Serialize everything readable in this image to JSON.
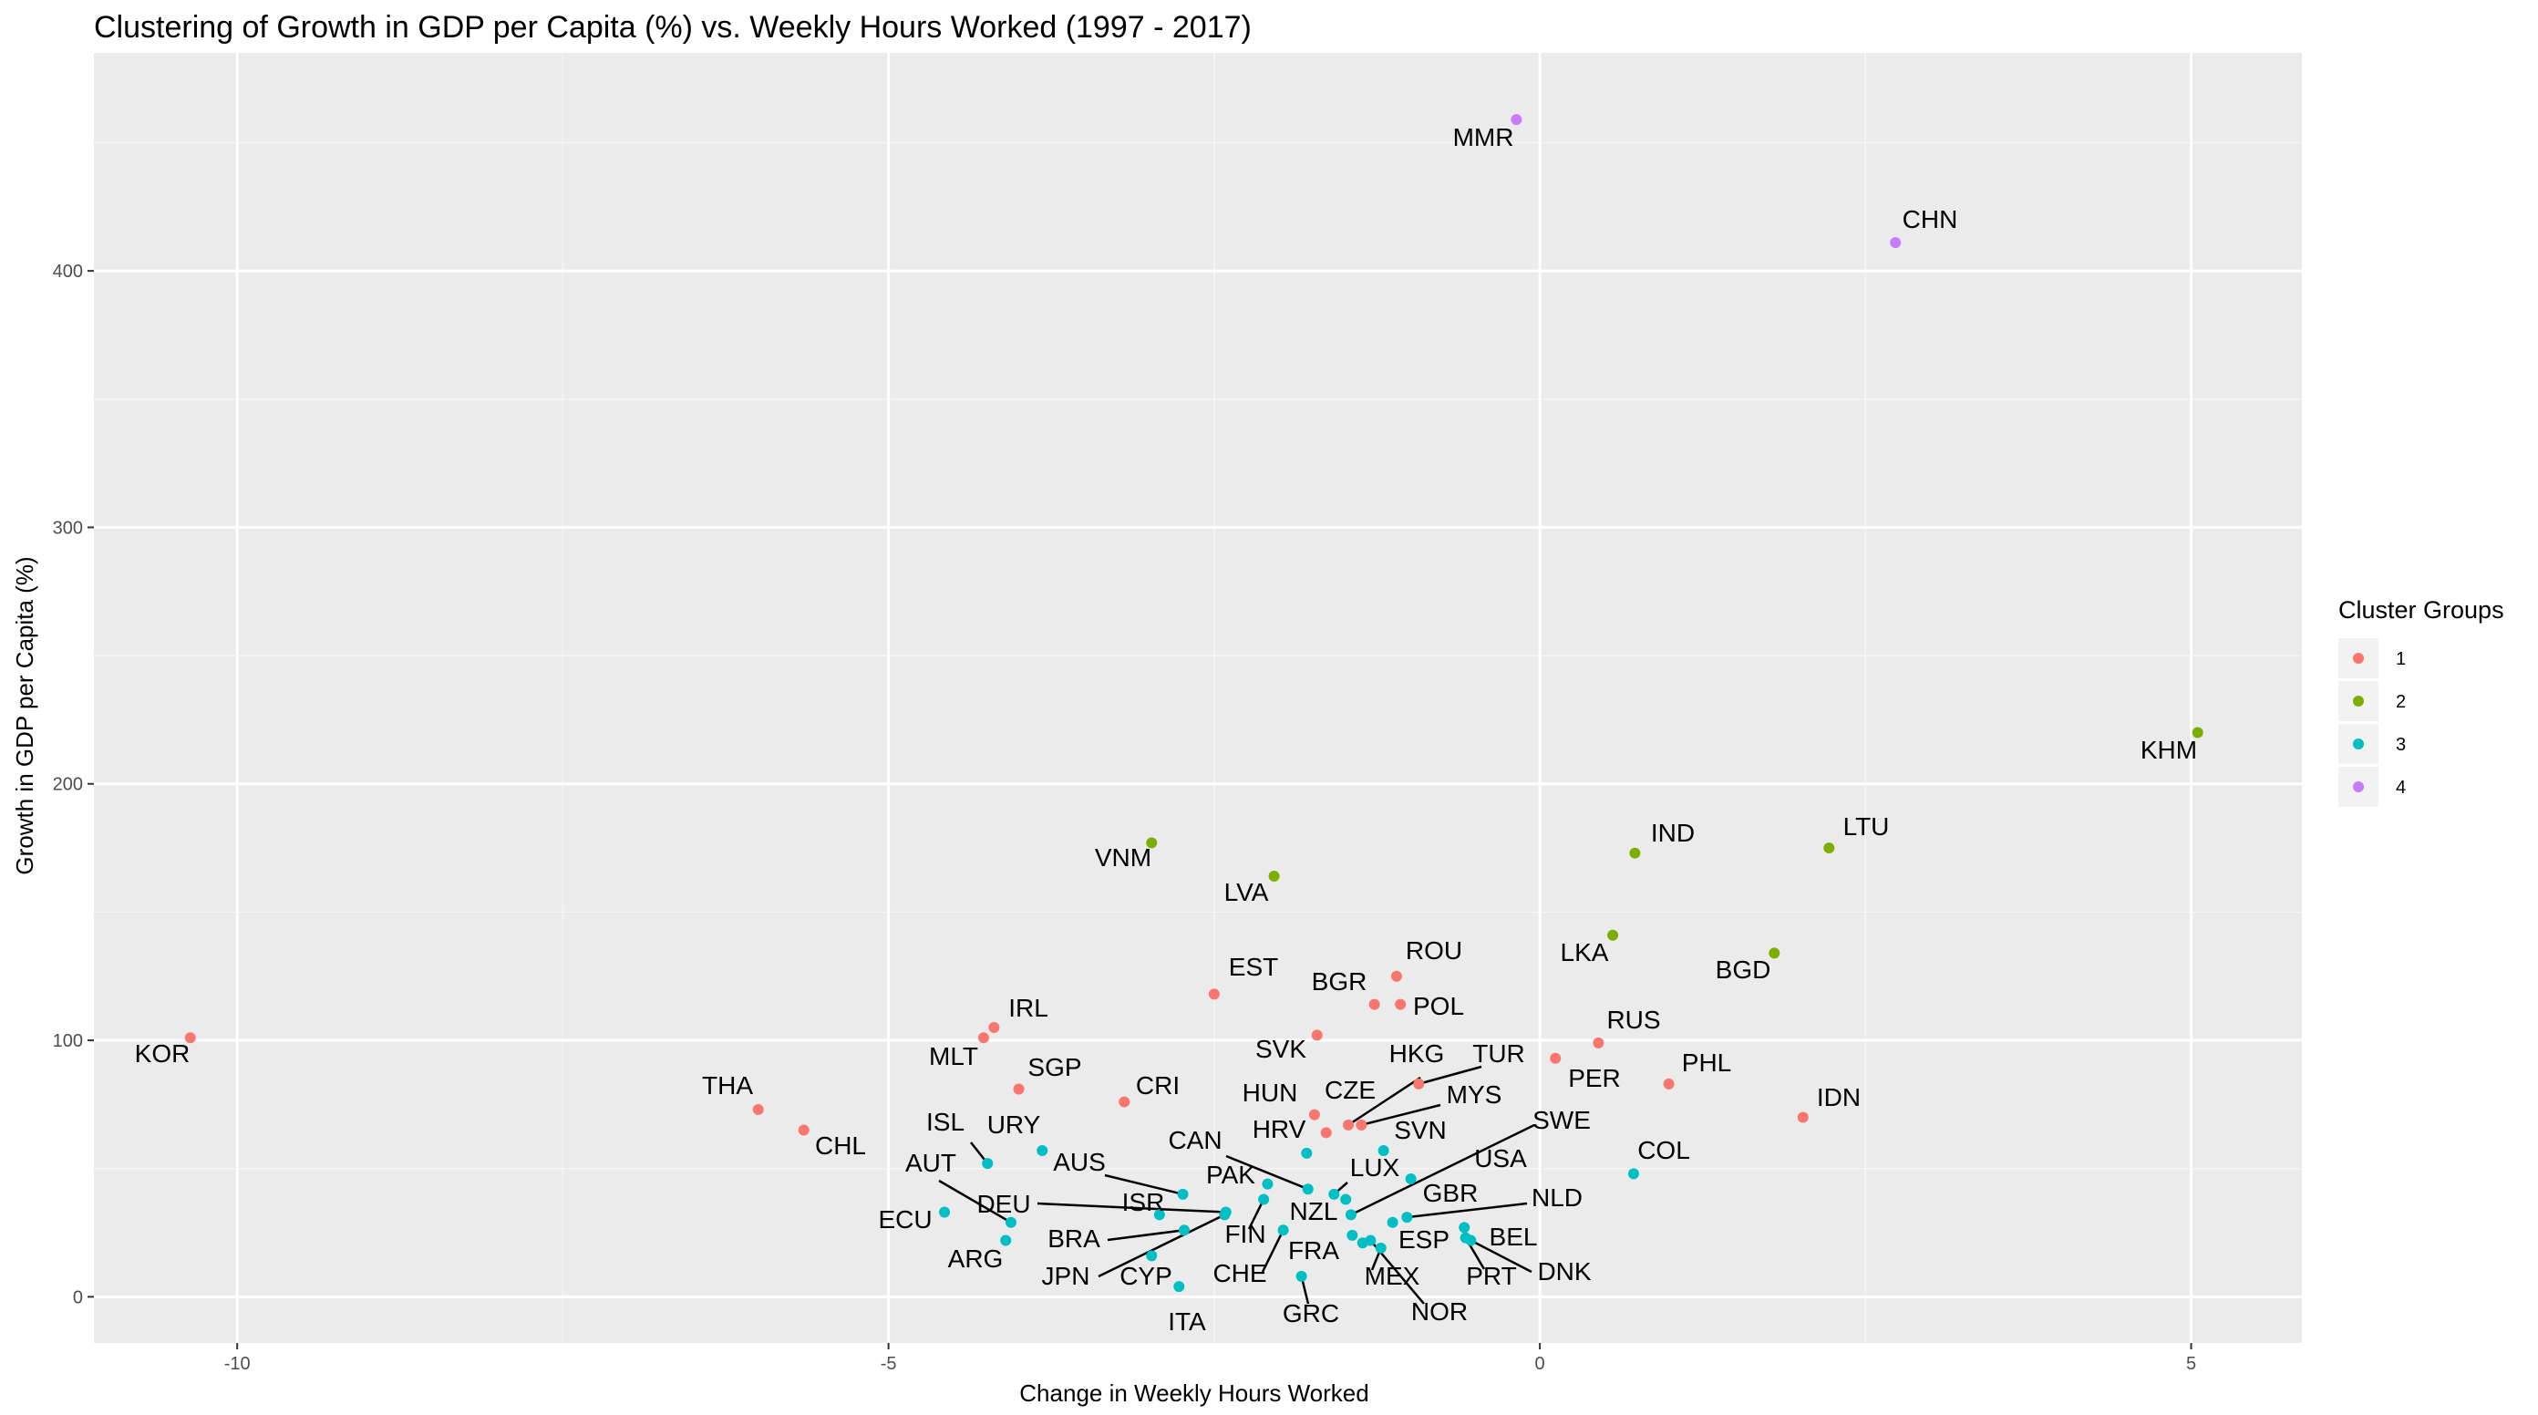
{
  "chart_data": {
    "type": "scatter",
    "title": "Clustering of Growth in GDP per Capita (%) vs. Weekly Hours Worked (1997 - 2017)",
    "xlabel": "Change in Weekly Hours Worked",
    "ylabel": "Growth in GDP per Capita (%)",
    "xlim": [
      -11.1,
      5.85
    ],
    "ylim": [
      -18,
      485
    ],
    "x_ticks": [
      -10,
      -5,
      0,
      5
    ],
    "x_tick_labels": [
      "-10",
      "-5",
      "0",
      "5"
    ],
    "y_ticks": [
      0,
      100,
      200,
      300,
      400
    ],
    "y_tick_labels": [
      "0",
      "100",
      "200",
      "300",
      "400"
    ],
    "grid": true,
    "legend": {
      "title": "Cluster Groups",
      "position": "right",
      "entries": [
        {
          "label": "1",
          "color": "#F8766D"
        },
        {
          "label": "2",
          "color": "#7CAE00"
        },
        {
          "label": "3",
          "color": "#00BFC4"
        },
        {
          "label": "4",
          "color": "#C77CFF"
        }
      ]
    },
    "points": [
      {
        "label": "KOR",
        "x": -10.36,
        "y": 101,
        "cluster": "1"
      },
      {
        "label": "THA",
        "x": -6.0,
        "y": 73,
        "cluster": "1"
      },
      {
        "label": "CHL",
        "x": -5.65,
        "y": 65,
        "cluster": "1"
      },
      {
        "label": "IRL",
        "x": -4.19,
        "y": 105,
        "cluster": "1"
      },
      {
        "label": "MLT",
        "x": -4.27,
        "y": 101,
        "cluster": "1"
      },
      {
        "label": "SGP",
        "x": -4.0,
        "y": 81,
        "cluster": "1"
      },
      {
        "label": "CRI",
        "x": -3.19,
        "y": 76,
        "cluster": "1"
      },
      {
        "label": "EST",
        "x": -2.5,
        "y": 118,
        "cluster": "1"
      },
      {
        "label": "SVK",
        "x": -1.71,
        "y": 102,
        "cluster": "1"
      },
      {
        "label": "HUN",
        "x": -1.73,
        "y": 71,
        "cluster": "1"
      },
      {
        "label": "CZE",
        "x": -1.64,
        "y": 64,
        "cluster": "1"
      },
      {
        "label": "HKG",
        "x": -1.47,
        "y": 67,
        "cluster": "1"
      },
      {
        "label": "MYS",
        "x": -1.37,
        "y": 67,
        "cluster": "1"
      },
      {
        "label": "TUR",
        "x": -0.93,
        "y": 83,
        "cluster": "1"
      },
      {
        "label": "BGR",
        "x": -1.27,
        "y": 114,
        "cluster": "1"
      },
      {
        "label": "ROU",
        "x": -1.1,
        "y": 125,
        "cluster": "1"
      },
      {
        "label": "POL",
        "x": -1.07,
        "y": 114,
        "cluster": "1"
      },
      {
        "label": "PER",
        "x": 0.12,
        "y": 93,
        "cluster": "1"
      },
      {
        "label": "RUS",
        "x": 0.45,
        "y": 99,
        "cluster": "1"
      },
      {
        "label": "PHL",
        "x": 0.99,
        "y": 83,
        "cluster": "1"
      },
      {
        "label": "IDN",
        "x": 2.02,
        "y": 70,
        "cluster": "1"
      },
      {
        "label": "VNM",
        "x": -2.98,
        "y": 177,
        "cluster": "2"
      },
      {
        "label": "LVA",
        "x": -2.04,
        "y": 164,
        "cluster": "2"
      },
      {
        "label": "LKA",
        "x": 0.56,
        "y": 141,
        "cluster": "2"
      },
      {
        "label": "IND",
        "x": 0.73,
        "y": 173,
        "cluster": "2"
      },
      {
        "label": "BGD",
        "x": 1.8,
        "y": 134,
        "cluster": "2"
      },
      {
        "label": "LTU",
        "x": 2.22,
        "y": 175,
        "cluster": "2"
      },
      {
        "label": "KHM",
        "x": 5.05,
        "y": 220,
        "cluster": "2"
      },
      {
        "label": "ISL",
        "x": -4.24,
        "y": 52,
        "cluster": "3"
      },
      {
        "label": "URY",
        "x": -3.82,
        "y": 57,
        "cluster": "3"
      },
      {
        "label": "ECU",
        "x": -4.57,
        "y": 33,
        "cluster": "3"
      },
      {
        "label": "AUT",
        "x": -4.06,
        "y": 29,
        "cluster": "3"
      },
      {
        "label": "DEU",
        "x": -2.41,
        "y": 33,
        "cluster": "3"
      },
      {
        "label": "ARG",
        "x": -4.1,
        "y": 22,
        "cluster": "3"
      },
      {
        "label": "AUS",
        "x": -2.74,
        "y": 40,
        "cluster": "3"
      },
      {
        "label": "ISR",
        "x": -2.92,
        "y": 32,
        "cluster": "3"
      },
      {
        "label": "BRA",
        "x": -2.73,
        "y": 26,
        "cluster": "3"
      },
      {
        "label": "JPN",
        "x": -2.42,
        "y": 32,
        "cluster": "3"
      },
      {
        "label": "CYP",
        "x": -2.98,
        "y": 16,
        "cluster": "3"
      },
      {
        "label": "ITA",
        "x": -2.77,
        "y": 4,
        "cluster": "3"
      },
      {
        "label": "PAK",
        "x": -2.09,
        "y": 44,
        "cluster": "3"
      },
      {
        "label": "FIN",
        "x": -2.12,
        "y": 38,
        "cluster": "3"
      },
      {
        "label": "CAN",
        "x": -1.78,
        "y": 42,
        "cluster": "3"
      },
      {
        "label": "HRV",
        "x": -1.79,
        "y": 56,
        "cluster": "3"
      },
      {
        "label": "CHE",
        "x": -1.97,
        "y": 26,
        "cluster": "3"
      },
      {
        "label": "GRC",
        "x": -1.83,
        "y": 8,
        "cluster": "3"
      },
      {
        "label": "LUX",
        "x": -1.58,
        "y": 40,
        "cluster": "3"
      },
      {
        "label": "NZL",
        "x": -1.49,
        "y": 38,
        "cluster": "3"
      },
      {
        "label": "SWE",
        "x": -1.45,
        "y": 32,
        "cluster": "3"
      },
      {
        "label": "FRA",
        "x": -1.44,
        "y": 24,
        "cluster": "3"
      },
      {
        "label": "SVN",
        "x": -1.2,
        "y": 57,
        "cluster": "3"
      },
      {
        "label": "USA",
        "x": -0.99,
        "y": 46,
        "cluster": "3"
      },
      {
        "label": "GBR",
        "x": -1.13,
        "y": 29,
        "cluster": "3"
      },
      {
        "label": "NLD",
        "x": -1.02,
        "y": 31,
        "cluster": "3"
      },
      {
        "label": "ESP",
        "x": -1.36,
        "y": 21,
        "cluster": "3"
      },
      {
        "label": "MEX",
        "x": -1.22,
        "y": 19,
        "cluster": "3"
      },
      {
        "label": "NOR",
        "x": -1.3,
        "y": 22,
        "cluster": "3"
      },
      {
        "label": "BEL",
        "x": -0.58,
        "y": 27,
        "cluster": "3"
      },
      {
        "label": "PRT",
        "x": -0.57,
        "y": 23,
        "cluster": "3"
      },
      {
        "label": "DNK",
        "x": -0.53,
        "y": 22,
        "cluster": "3"
      },
      {
        "label": "COL",
        "x": 0.72,
        "y": 48,
        "cluster": "3"
      },
      {
        "label": "MMR",
        "x": -0.18,
        "y": 459,
        "cluster": "4"
      },
      {
        "label": "CHN",
        "x": 2.73,
        "y": 411,
        "cluster": "4"
      }
    ]
  }
}
